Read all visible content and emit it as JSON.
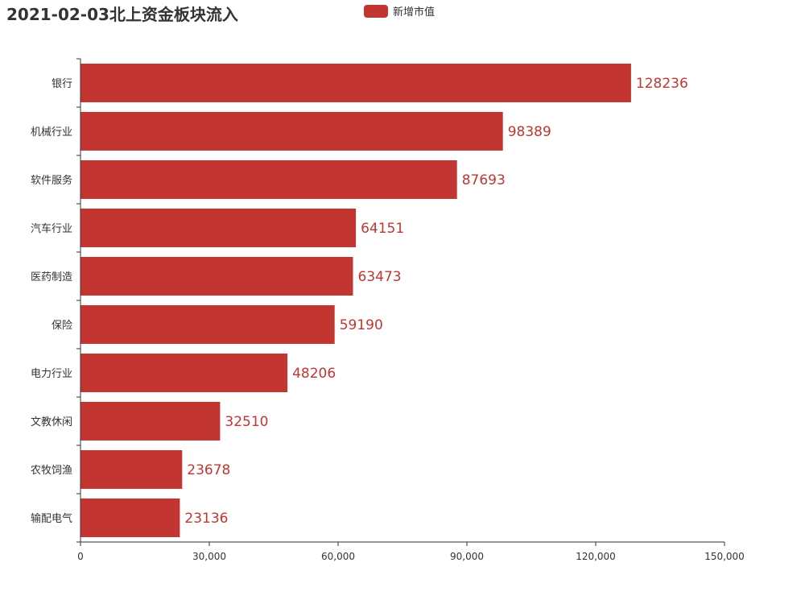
{
  "colors": {
    "bar": "#c23531",
    "axis": "#333333"
  },
  "legend": {
    "label": "新增市值"
  },
  "chart_data": {
    "type": "bar",
    "orientation": "horizontal",
    "title": "2021-02-03北上资金板块流入",
    "categories": [
      "银行",
      "机械行业",
      "软件服务",
      "汽车行业",
      "医药制造",
      "保险",
      "电力行业",
      "文教休闲",
      "农牧饲渔",
      "输配电气"
    ],
    "series": [
      {
        "name": "新增市值",
        "values": [
          128236,
          98389,
          87693,
          64151,
          63473,
          59190,
          48206,
          32510,
          23678,
          23136
        ]
      }
    ],
    "xlim": [
      0,
      150000
    ],
    "xticks": [
      0,
      30000,
      60000,
      90000,
      120000,
      150000
    ],
    "xtick_labels": [
      "0",
      "30,000",
      "60,000",
      "90,000",
      "120,000",
      "150,000"
    ],
    "grid": false,
    "legend_position": "top-center"
  }
}
